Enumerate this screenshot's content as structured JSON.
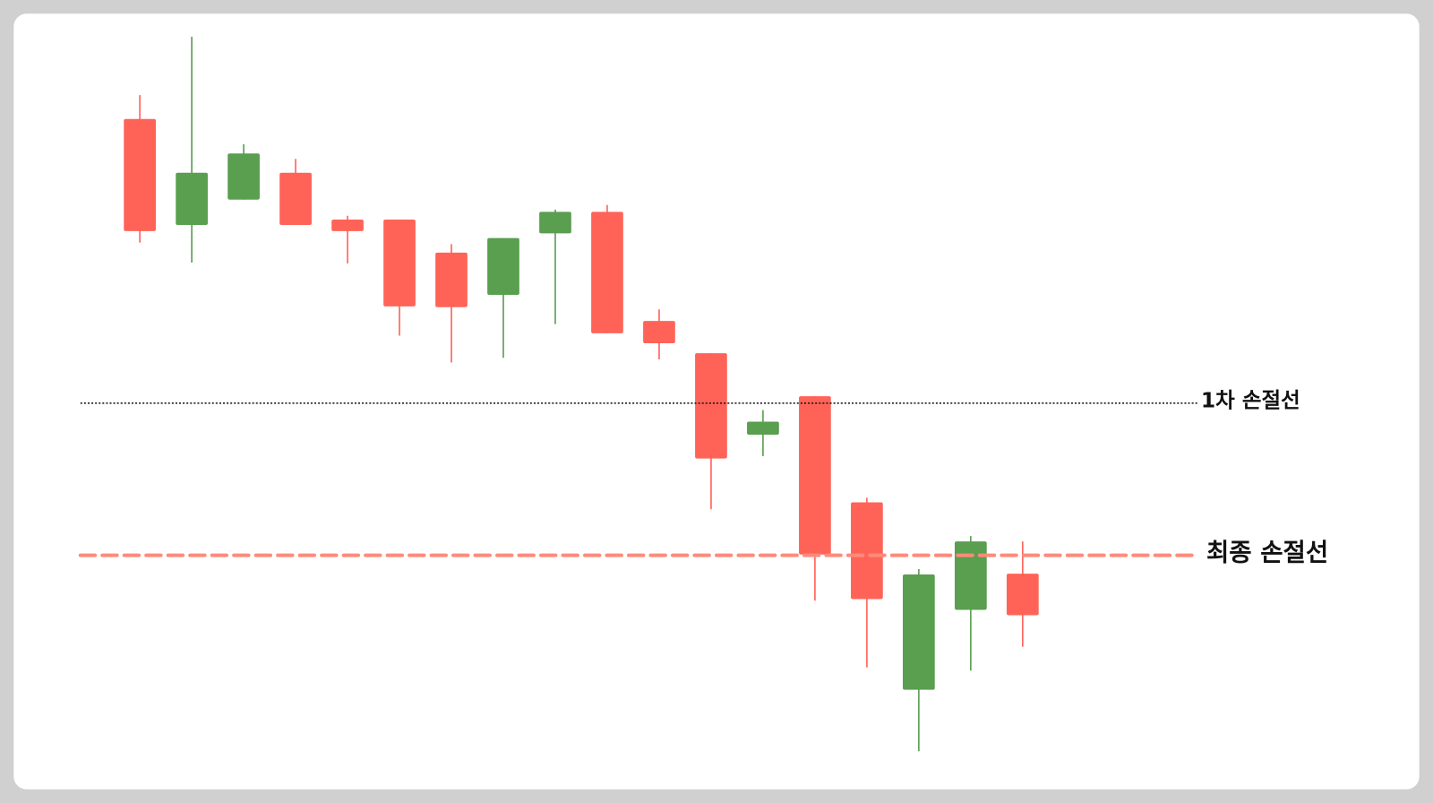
{
  "chart_data": {
    "type": "candlestick",
    "open": [
      72.3,
      79.9,
      82.4,
      73.1,
      72.3,
      62.5,
      62.4,
      71.4,
      74.8,
      59.0,
      57.7,
      42.7,
      47.5,
      30.2,
      24.4,
      27.6,
      31.9,
      22.3
    ],
    "high": [
      90.0,
      97.6,
      83.6,
      81.7,
      74.3,
      73.8,
      70.6,
      71.4,
      75.1,
      75.7,
      62.1,
      56.4,
      49.0,
      50.8,
      37.6,
      28.3,
      32.6,
      31.9
    ],
    "low": [
      70.8,
      68.2,
      76.4,
      73.1,
      68.1,
      58.7,
      55.2,
      55.8,
      60.2,
      59.0,
      55.6,
      36.1,
      43.0,
      24.2,
      15.5,
      4.6,
      15.1,
      18.2
    ],
    "close": [
      86.9,
      73.1,
      76.4,
      79.9,
      73.8,
      73.8,
      69.5,
      64.0,
      72.0,
      74.8,
      60.6,
      56.4,
      45.8,
      50.8,
      37.0,
      12.6,
      23.0,
      27.7
    ],
    "up_color": "#ff6358",
    "down_color": "#5a9e50",
    "ylim": [
      0,
      100
    ],
    "lines": [
      {
        "label": "1차 손절선",
        "value": 49.9,
        "color": "#111111",
        "style": "dotted"
      },
      {
        "label": "최종 손절선",
        "value": 30.1,
        "color": "#ff8a7a",
        "style": "dashed"
      }
    ]
  }
}
